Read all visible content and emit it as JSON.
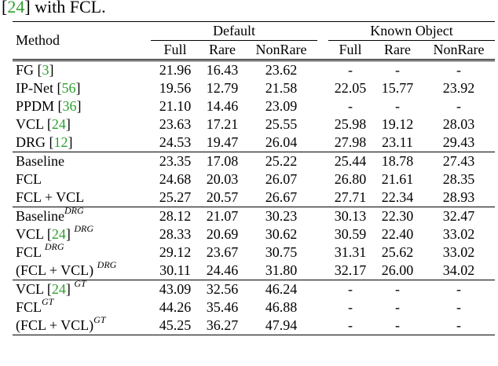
{
  "caption": {
    "pre": "[",
    "cite": "24",
    "post": "] with FCL."
  },
  "header": {
    "method": "Method",
    "group1": "Default",
    "group2": "Known Object",
    "cols": [
      "Full",
      "Rare",
      "NonRare",
      "Full",
      "Rare",
      "NonRare"
    ]
  },
  "groups": [
    {
      "rows": [
        {
          "name": "FG [",
          "cite": "3",
          "after": "]",
          "sup": "",
          "vals": [
            "21.96",
            "16.43",
            "23.62",
            "-",
            "-",
            "-"
          ],
          "bold": [
            false,
            false,
            false,
            false,
            false,
            false
          ]
        },
        {
          "name": "IP-Net [",
          "cite": "56",
          "after": "]",
          "sup": "",
          "vals": [
            "19.56",
            "12.79",
            "21.58",
            "22.05",
            "15.77",
            "23.92"
          ],
          "bold": [
            false,
            false,
            false,
            false,
            false,
            false
          ]
        },
        {
          "name": "PPDM [",
          "cite": "36",
          "after": "]",
          "sup": "",
          "vals": [
            "21.10",
            "14.46",
            "23.09",
            "-",
            "-",
            "-"
          ],
          "bold": [
            false,
            false,
            false,
            false,
            false,
            false
          ]
        },
        {
          "name": "VCL [",
          "cite": "24",
          "after": "]",
          "sup": "",
          "vals": [
            "23.63",
            "17.21",
            "25.55",
            "25.98",
            "19.12",
            "28.03"
          ],
          "bold": [
            false,
            false,
            false,
            false,
            false,
            false
          ]
        },
        {
          "name": "DRG [",
          "cite": "12",
          "after": "]",
          "sup": "",
          "vals": [
            "24.53",
            "19.47",
            "26.04",
            "27.98",
            "23.11",
            "29.43"
          ],
          "bold": [
            false,
            false,
            false,
            false,
            false,
            false
          ]
        }
      ]
    },
    {
      "rows": [
        {
          "name": "Baseline",
          "cite": "",
          "after": "",
          "sup": "",
          "vals": [
            "23.35",
            "17.08",
            "25.22",
            "25.44",
            "18.78",
            "27.43"
          ],
          "bold": [
            false,
            false,
            false,
            false,
            false,
            false
          ]
        },
        {
          "name": "FCL",
          "cite": "",
          "after": "",
          "sup": "",
          "vals": [
            "24.68",
            "20.03",
            "26.07",
            "26.80",
            "21.61",
            "28.35"
          ],
          "bold": [
            true,
            true,
            false,
            true,
            true,
            true
          ]
        },
        {
          "name": "FCL + VCL",
          "cite": "",
          "after": "",
          "sup": "",
          "vals": [
            "25.27",
            "20.57",
            "26.67",
            "27.71",
            "22.34",
            "28.93"
          ],
          "bold": [
            true,
            true,
            true,
            true,
            true,
            true
          ]
        }
      ]
    },
    {
      "rows": [
        {
          "name": "Baseline",
          "cite": "",
          "after": "",
          "sup": "DRG",
          "vals": [
            "28.12",
            "21.07",
            "30.23",
            "30.13",
            "22.30",
            "32.47"
          ],
          "bold": [
            false,
            false,
            false,
            false,
            false,
            false
          ]
        },
        {
          "name": "VCL [",
          "cite": "24",
          "after": "] ",
          "sup": "DRG",
          "vals": [
            "28.33",
            "20.69",
            "30.62",
            "30.59",
            "22.40",
            "33.02"
          ],
          "bold": [
            false,
            false,
            false,
            false,
            false,
            false
          ]
        },
        {
          "name": "FCL ",
          "cite": "",
          "after": "",
          "sup": "DRG",
          "vals": [
            "29.12",
            "23.67",
            "30.75",
            "31.31",
            "25.62",
            "33.02"
          ],
          "bold": [
            true,
            true,
            true,
            true,
            true,
            true
          ]
        },
        {
          "name": "(FCL + VCL) ",
          "cite": "",
          "after": "",
          "sup": "DRG",
          "vals": [
            "30.11",
            "24.46",
            "31.80",
            "32.17",
            "26.00",
            "34.02"
          ],
          "bold": [
            true,
            true,
            true,
            true,
            true,
            true
          ]
        }
      ]
    },
    {
      "rows": [
        {
          "name": "VCL [",
          "cite": "24",
          "after": "] ",
          "sup": "GT",
          "vals": [
            "43.09",
            "32.56",
            "46.24",
            "-",
            "-",
            "-"
          ],
          "bold": [
            false,
            false,
            false,
            false,
            false,
            false
          ]
        },
        {
          "name": "FCL",
          "cite": "",
          "after": "",
          "sup": "GT",
          "vals": [
            "44.26",
            "35.46",
            "46.88",
            "-",
            "-",
            "-"
          ],
          "bold": [
            true,
            true,
            true,
            false,
            false,
            false
          ]
        },
        {
          "name": "(FCL + VCL)",
          "cite": "",
          "after": "",
          "sup": "GT",
          "vals": [
            "45.25",
            "36.27",
            "47.94",
            "-",
            "-",
            "-"
          ],
          "bold": [
            true,
            true,
            true,
            false,
            false,
            false
          ]
        }
      ]
    }
  ]
}
